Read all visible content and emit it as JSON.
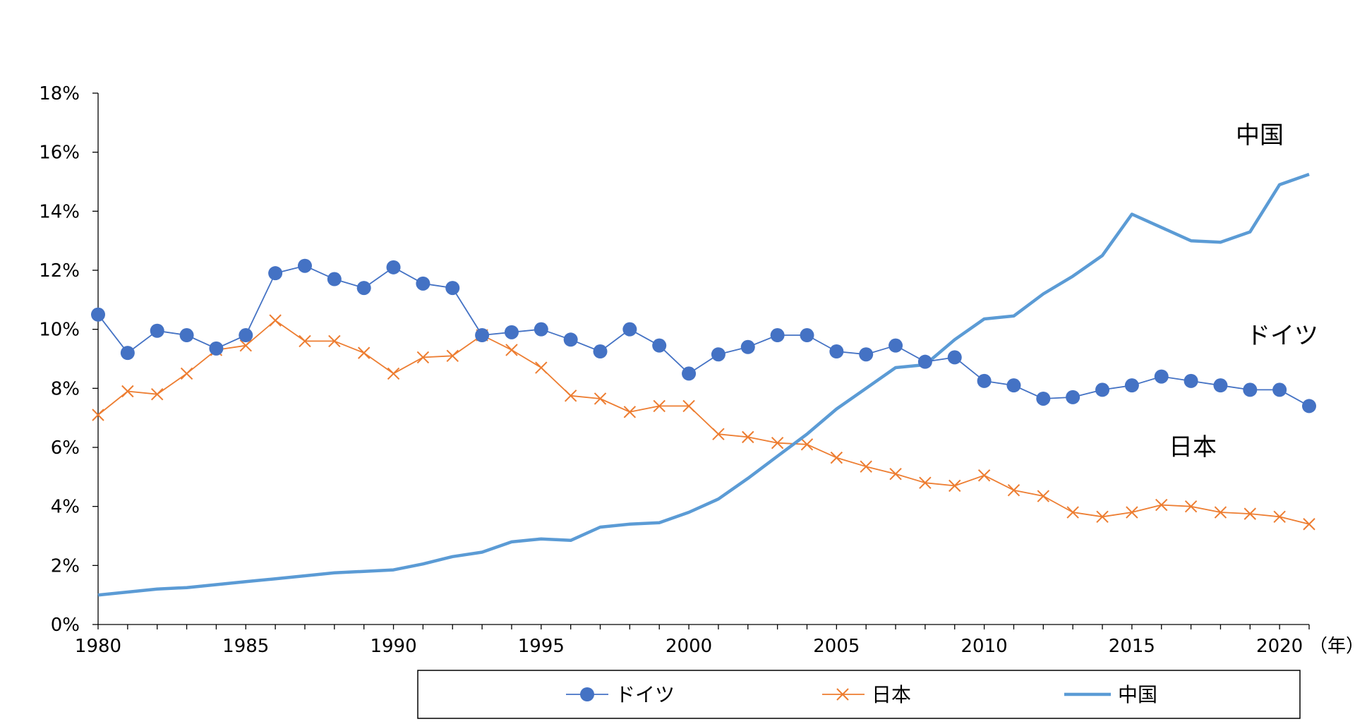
{
  "chart_data": {
    "type": "line",
    "x_unit_label": "（年）",
    "x": [
      1980,
      1981,
      1982,
      1983,
      1984,
      1985,
      1986,
      1987,
      1988,
      1989,
      1990,
      1991,
      1992,
      1993,
      1994,
      1995,
      1996,
      1997,
      1998,
      1999,
      2000,
      2001,
      2002,
      2003,
      2004,
      2005,
      2006,
      2007,
      2008,
      2009,
      2010,
      2011,
      2012,
      2013,
      2014,
      2015,
      2016,
      2017,
      2018,
      2019,
      2020,
      2021
    ],
    "x_ticks": [
      "1980",
      "1985",
      "1990",
      "1995",
      "2000",
      "2005",
      "2010",
      "2015",
      "2020"
    ],
    "y_ticks": [
      "0%",
      "2%",
      "4%",
      "6%",
      "8%",
      "10%",
      "12%",
      "14%",
      "16%",
      "18%"
    ],
    "ylim": [
      0,
      18
    ],
    "xlim": [
      1980,
      2021
    ],
    "grid": false,
    "legend_position": "bottom",
    "series": [
      {
        "name": "ドイツ",
        "color": "#4472c4",
        "marker": "circle",
        "values": [
          10.5,
          9.2,
          9.95,
          9.8,
          9.35,
          9.8,
          11.9,
          12.15,
          11.7,
          11.4,
          12.1,
          11.55,
          11.4,
          9.8,
          9.9,
          10.0,
          9.65,
          9.25,
          10.0,
          9.45,
          8.5,
          9.15,
          9.4,
          9.8,
          9.8,
          9.25,
          9.15,
          9.45,
          8.9,
          9.05,
          8.25,
          8.1,
          7.65,
          7.7,
          7.95,
          8.1,
          8.4,
          8.25,
          8.1,
          7.95,
          7.95,
          7.4
        ]
      },
      {
        "name": "日本",
        "color": "#ed7d31",
        "marker": "x",
        "values": [
          7.1,
          7.9,
          7.8,
          8.5,
          9.3,
          9.45,
          10.3,
          9.6,
          9.6,
          9.2,
          8.5,
          9.05,
          9.1,
          9.8,
          9.3,
          8.7,
          7.75,
          7.65,
          7.2,
          7.4,
          7.4,
          6.45,
          6.35,
          6.15,
          6.1,
          5.65,
          5.35,
          5.1,
          4.8,
          4.7,
          5.05,
          4.55,
          4.35,
          3.8,
          3.65,
          3.8,
          4.05,
          4.0,
          3.8,
          3.75,
          3.65,
          3.4
        ]
      },
      {
        "name": "中国",
        "color": "#5b9bd5",
        "marker": "none",
        "values": [
          1.0,
          1.1,
          1.2,
          1.25,
          1.35,
          1.45,
          1.55,
          1.65,
          1.75,
          1.8,
          1.85,
          2.05,
          2.3,
          2.45,
          2.8,
          2.9,
          2.85,
          3.3,
          3.4,
          3.45,
          3.8,
          4.25,
          4.95,
          5.7,
          6.45,
          7.3,
          8.0,
          8.7,
          8.8,
          9.65,
          10.35,
          10.45,
          11.2,
          11.8,
          12.5,
          13.9,
          13.45,
          13.0,
          12.95,
          13.3,
          14.9,
          15.25
        ]
      }
    ]
  }
}
